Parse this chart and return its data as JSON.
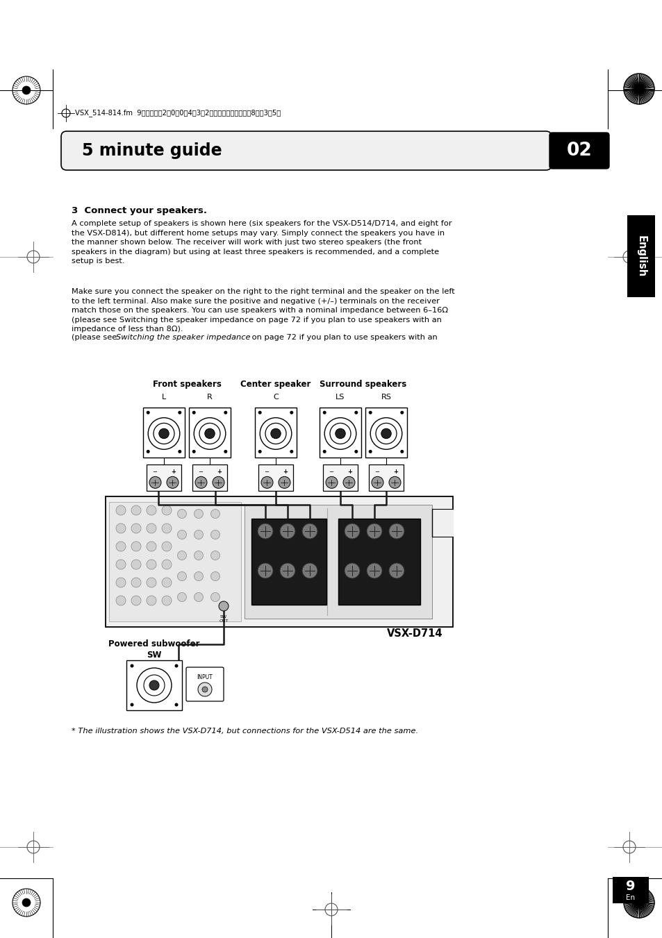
{
  "bg_color": "#ffffff",
  "header_text": "VSX_514-814.fm  9ページ・・2・0・0・4年3月2日・・火曜日・・午後8時・3・5分",
  "section_title": "5 minute guide",
  "section_num": "02",
  "english_tab": "English",
  "step_num": "3",
  "step_title": "Connect your speakers.",
  "body_text1": "A complete setup of speakers is shown here (six speakers for the VSX-D514/D714, and eight for\nthe VSX-D814), but different home setups may vary. Simply connect the speakers you have in\nthe manner shown below. The receiver will work with just two stereo speakers (the front\nspeakers in the diagram) but using at least three speakers is recommended, and a complete\nsetup is best.",
  "body_text2": "Make sure you connect the speaker on the right to the right terminal and the speaker on the left\nto the left terminal. Also make sure the positive and negative (+/–) terminals on the receiver\nmatch those on the speakers. You can use speakers with a nominal impedance between 6–16Ω\n(please see Switching the speaker impedance on page 72 if you plan to use speakers with an\nimpedance of less than 8Ω).",
  "front_speakers_label": "Front speakers",
  "front_L": "L",
  "front_R": "R",
  "center_speaker_label": "Center speaker",
  "center_C": "C",
  "surround_speakers_label": "Surround speakers",
  "surround_LS": "LS",
  "surround_RS": "RS",
  "vsx_label": "VSX-D714",
  "powered_sub_label": "Powered subwoofer",
  "sw_label": "SW",
  "footnote": "* The illustration shows the VSX-D714, but connections for the VSX-D514 are the same.",
  "page_num": "9",
  "page_en": "En",
  "spk_body_text2_italic": "Switching the speaker impedance"
}
